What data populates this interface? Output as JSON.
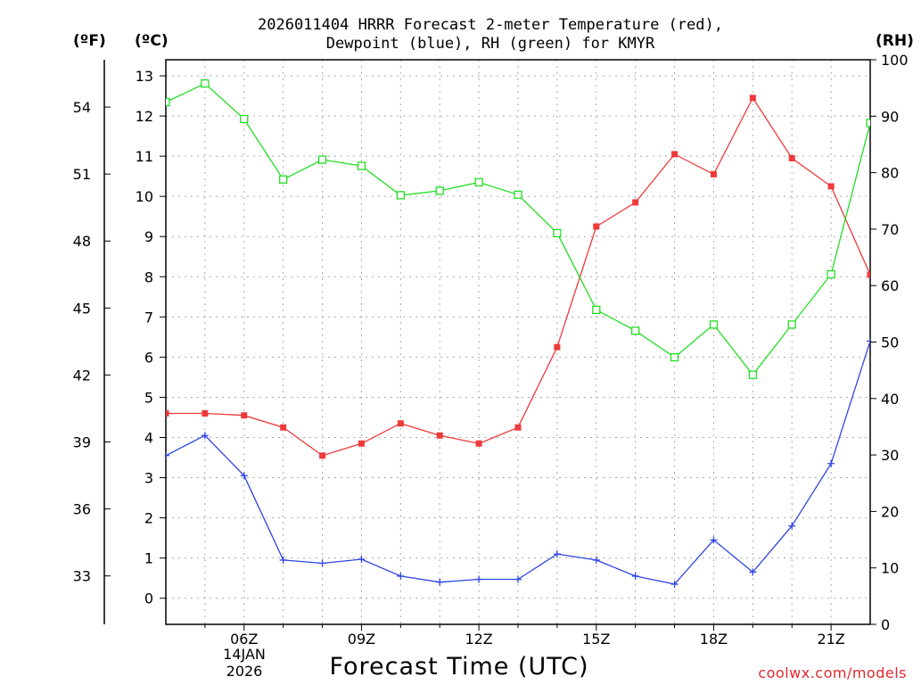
{
  "title": {
    "line1": "2026011404 HRRR Forecast 2-meter Temperature (red),",
    "line2": "Dewpoint (blue), RH (green) for KMYR"
  },
  "units": {
    "fahrenheit": "(ºF)",
    "celsius": "(ºC)",
    "rh": "(RH)"
  },
  "date_label": {
    "line1": "14JAN",
    "line2": "2026"
  },
  "x_title": "Forecast Time (UTC)",
  "credit": "coolwx.com/models",
  "colors": {
    "temperature": "#ee3a3a",
    "dewpoint": "#2f45e2",
    "rh": "#22dd22",
    "grid": "#aaaaaa"
  },
  "chart_data": {
    "type": "line",
    "title": "2026011404 HRRR Forecast 2-meter Temperature (red), Dewpoint (blue), RH (green) for KMYR",
    "xlabel": "Forecast Time (UTC)",
    "x": [
      4,
      5,
      6,
      7,
      8,
      9,
      10,
      11,
      12,
      13,
      14,
      15,
      16,
      17,
      18,
      19,
      20,
      21,
      22
    ],
    "xlim": [
      4,
      22
    ],
    "x_ticks": [
      6,
      9,
      12,
      15,
      18,
      21
    ],
    "x_tick_labels": [
      "06Z",
      "09Z",
      "12Z",
      "15Z",
      "18Z",
      "21Z"
    ],
    "y_left_celsius": {
      "label": "(ºC)",
      "range": [
        -0.65,
        13.4
      ],
      "ticks": [
        0,
        1,
        2,
        3,
        4,
        5,
        6,
        7,
        8,
        9,
        10,
        11,
        12,
        13
      ]
    },
    "y_left_fahrenheit": {
      "label": "(ºF)",
      "ticks": [
        33,
        36,
        39,
        42,
        45,
        48,
        51,
        54
      ]
    },
    "y_right_rh": {
      "label": "(RH)",
      "range": [
        0,
        100
      ],
      "ticks": [
        0,
        10,
        20,
        30,
        40,
        50,
        60,
        70,
        80,
        90,
        100
      ]
    },
    "series": [
      {
        "name": "Temperature",
        "axis": "celsius",
        "color": "#ee3a3a",
        "marker": "filled-square",
        "values": [
          4.6,
          4.6,
          4.55,
          4.25,
          3.55,
          3.85,
          4.35,
          4.05,
          3.85,
          4.25,
          6.25,
          9.25,
          9.85,
          11.05,
          10.55,
          12.45,
          10.95,
          10.25,
          8.05
        ]
      },
      {
        "name": "Dewpoint",
        "axis": "celsius",
        "color": "#2f45e2",
        "marker": "plus",
        "values": [
          3.55,
          4.05,
          3.05,
          0.95,
          0.87,
          0.97,
          0.55,
          0.4,
          0.47,
          0.47,
          1.1,
          0.95,
          0.55,
          0.35,
          1.45,
          0.65,
          1.8,
          3.35,
          6.4
        ]
      },
      {
        "name": "RH",
        "axis": "rh",
        "color": "#22dd22",
        "marker": "open-square",
        "values": [
          92.5,
          95.8,
          89.5,
          78.8,
          82.3,
          81.2,
          76.0,
          76.8,
          78.3,
          76.1,
          69.3,
          55.7,
          52.0,
          47.3,
          53.1,
          44.2,
          53.1,
          62.0,
          88.8
        ]
      }
    ]
  }
}
